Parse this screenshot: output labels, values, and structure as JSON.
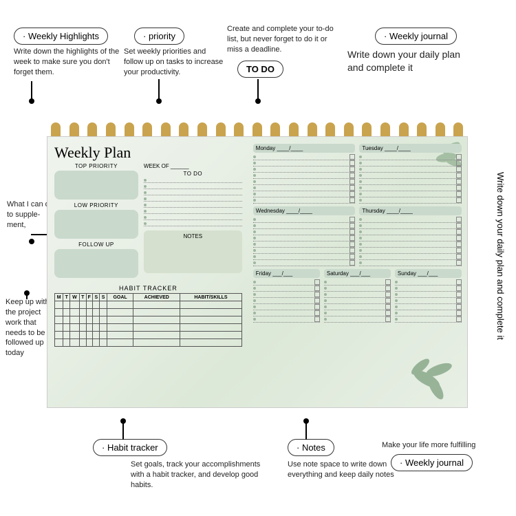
{
  "callouts": {
    "highlights": {
      "label": "· Weekly Highlights",
      "desc": "Write down the highlights of the week to make sure you don't forget them."
    },
    "priority": {
      "label": "· priority",
      "desc": "Set weekly priorities and follow up on tasks to increase your productivity."
    },
    "todo": {
      "label": "TO DO",
      "desc": "Create and complete your to-do list, but never forget to do it or miss a deadline."
    },
    "journal_top": {
      "label": "· Weekly journal",
      "desc": "Write down your daily plan and complete it"
    },
    "supplement": "What I can do to supple-ment,",
    "followup_desc": "Keep up with the project work that needs to be followed up today",
    "habit": {
      "label": "· Habit tracker",
      "desc": "Set goals, track your accomplishments with a habit tracker, and develop good habits."
    },
    "notes": {
      "label": "· Notes",
      "desc": "Use note space to write down everything and keep daily notes"
    },
    "journal_bottom": {
      "label": "· Weekly journal",
      "desc": "Make your life more fulfilling"
    },
    "vertical": "Write down your daily plan and complete it"
  },
  "planner": {
    "title": "Weekly Plan",
    "top_priority": "TOP PRIORITY",
    "low_priority": "LOW PRIORITY",
    "follow_up": "FOLLOW UP",
    "week_of": "WEEK OF ______",
    "todo": "TO DO",
    "notes": "NOTES",
    "habit_tracker": "HABIT TRACKER",
    "habit_cols": [
      "M",
      "T",
      "W",
      "T",
      "F",
      "S",
      "S",
      "GOAL",
      "ACHIEVED",
      "HABIT/SKILLS"
    ],
    "days": [
      "Monday",
      "Tuesday",
      "Wednesday",
      "Thursday",
      "Friday",
      "Saturday",
      "Sunday"
    ]
  },
  "colors": {
    "box": "#c9d9cc",
    "accent": "#9db59f",
    "border": "#333333"
  }
}
